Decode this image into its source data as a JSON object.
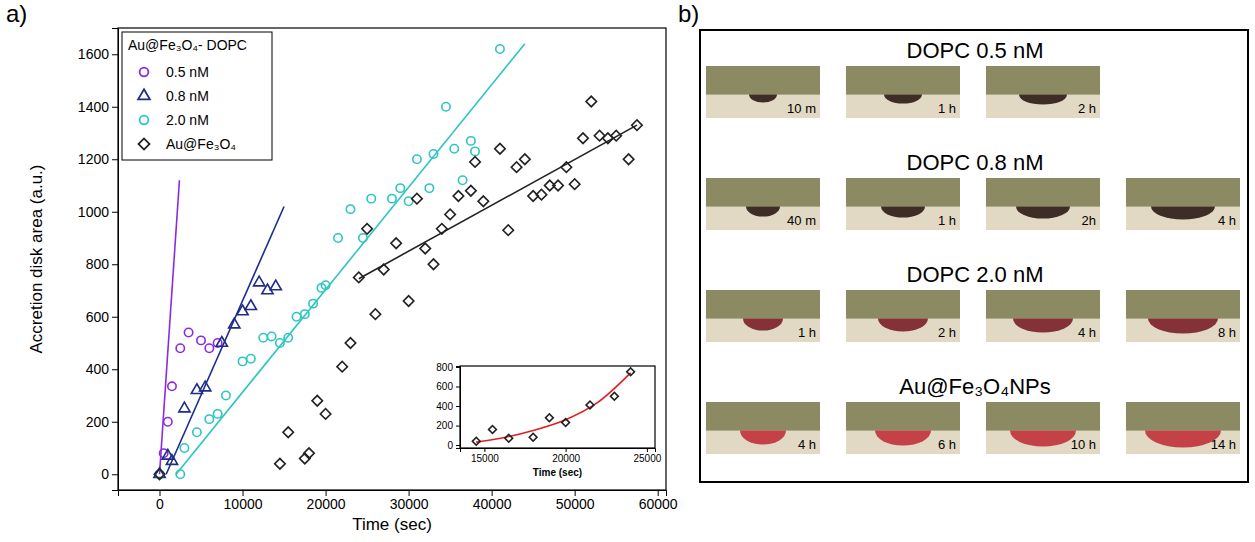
{
  "chart_data": [
    {
      "type": "scatter",
      "panel_label": "a)",
      "xlabel": "Time (sec)",
      "ylabel": "Accretion disk area (a.u.)",
      "xlim": [
        -5000,
        61000
      ],
      "ylim": [
        -60,
        1700
      ],
      "xticks": [
        0,
        10000,
        20000,
        30000,
        40000,
        50000,
        60000
      ],
      "yticks": [
        0,
        200,
        400,
        600,
        800,
        1000,
        1200,
        1400,
        1600
      ],
      "legend": "top-left",
      "legend_title": "Au@Fe₃O₄- DOPC",
      "series": [
        {
          "name": "0.5 nM",
          "color": "#8a2be2",
          "marker": "circle",
          "x": [
            0,
            500,
            1000,
            1500,
            2500,
            3500,
            5000,
            6000,
            7000
          ],
          "values": [
            0,
            80,
            200,
            335,
            480,
            540,
            510,
            480,
            500
          ],
          "fit": {
            "x": [
              0,
              2400
            ],
            "values": [
              0,
              1120
            ],
            "line_style": "solid"
          }
        },
        {
          "name": "0.8 nM",
          "color": "#1f2d8a",
          "marker": "triangle",
          "x": [
            0,
            1000,
            1500,
            3000,
            4500,
            5500,
            7500,
            9000,
            10000,
            11000,
            12000,
            13000,
            14000
          ],
          "values": [
            0,
            70,
            50,
            250,
            320,
            330,
            500,
            570,
            620,
            640,
            730,
            700,
            715
          ],
          "fit": {
            "x": [
              800,
              15000
            ],
            "values": [
              0,
              1020
            ],
            "line_style": "solid"
          }
        },
        {
          "name": "2.0 nM",
          "color": "#2ec4c4",
          "marker": "circle",
          "x": [
            0,
            2500,
            3000,
            4500,
            6000,
            7000,
            8000,
            10000,
            11000,
            12500,
            13500,
            14500,
            15500,
            16500,
            17500,
            18500,
            19500,
            20000,
            21500,
            23000,
            24500,
            25500,
            28000,
            29000,
            30000,
            31000,
            32500,
            33000,
            34500,
            35500,
            36500,
            37500,
            38000,
            41000
          ],
          "values": [
            0,
            0,
            100,
            160,
            210,
            230,
            300,
            430,
            440,
            520,
            525,
            500,
            520,
            600,
            610,
            650,
            710,
            720,
            900,
            1010,
            900,
            1050,
            1050,
            1090,
            1040,
            1200,
            1090,
            1220,
            1400,
            1240,
            1120,
            1270,
            1230,
            1620
          ],
          "fit": {
            "x": [
              2000,
              44000
            ],
            "values": [
              0,
              1640
            ],
            "line_style": "solid"
          }
        },
        {
          "name": "Au@Fe₃O₄",
          "color": "#222222",
          "marker": "diamond",
          "x": [
            0,
            14500,
            15500,
            17500,
            18000,
            19000,
            20000,
            22000,
            23000,
            24000,
            25000,
            26000,
            27000,
            28500,
            30000,
            31000,
            32000,
            33000,
            34000,
            35000,
            36000,
            37500,
            38000,
            39000,
            41000,
            42000,
            43000,
            44000,
            45000,
            46000,
            47000,
            48000,
            49000,
            50000,
            51000,
            52000,
            53000,
            54000,
            55000,
            56500,
            57500
          ],
          "values": [
            0,
            40,
            160,
            60,
            80,
            280,
            230,
            410,
            500,
            750,
            935,
            610,
            780,
            880,
            660,
            1050,
            860,
            800,
            935,
            990,
            1060,
            1080,
            1190,
            1040,
            1240,
            930,
            1170,
            1200,
            1060,
            1065,
            1100,
            1100,
            1170,
            1105,
            1280,
            1420,
            1290,
            1280,
            1290,
            1200,
            1330
          ],
          "fit": {
            "x": [
              24000,
              57500
            ],
            "values": [
              745,
              1330
            ],
            "line_style": "solid"
          }
        }
      ]
    },
    {
      "type": "scatter",
      "xlabel": "Time (sec)",
      "xlim": [
        13500,
        25500
      ],
      "ylim": [
        -30,
        810
      ],
      "xticks": [
        15000,
        20000,
        25000
      ],
      "yticks": [
        0,
        200,
        400,
        600,
        800
      ],
      "series": [
        {
          "color": "#222222",
          "marker": "diamond",
          "x": [
            14500,
            15500,
            16500,
            18000,
            19000,
            20000,
            21500,
            23000,
            24000
          ],
          "values": [
            40,
            160,
            70,
            80,
            280,
            230,
            410,
            500,
            750
          ],
          "fit": {
            "x": [
              14500,
              16000,
              18000,
              20000,
              22000,
              24000
            ],
            "values": [
              30,
              70,
              150,
              260,
              440,
              740
            ],
            "color": "#e02020",
            "line_style": "solid"
          }
        }
      ]
    }
  ],
  "panel_b": {
    "label": "b)",
    "groups": [
      {
        "title": "DOPC 0.5 nM",
        "frames": [
          "10 m",
          "1 h",
          "2 h"
        ]
      },
      {
        "title": "DOPC 0.8 nM",
        "frames": [
          "40 m",
          "1 h",
          "2h",
          "4 h"
        ]
      },
      {
        "title": "DOPC 2.0 nM",
        "frames": [
          "1 h",
          "2 h",
          "4 h",
          "8 h"
        ]
      },
      {
        "title": "Au@Fe₃O₄NPs",
        "frames": [
          "4 h",
          "6 h",
          "10 h",
          "14 h"
        ]
      }
    ]
  }
}
